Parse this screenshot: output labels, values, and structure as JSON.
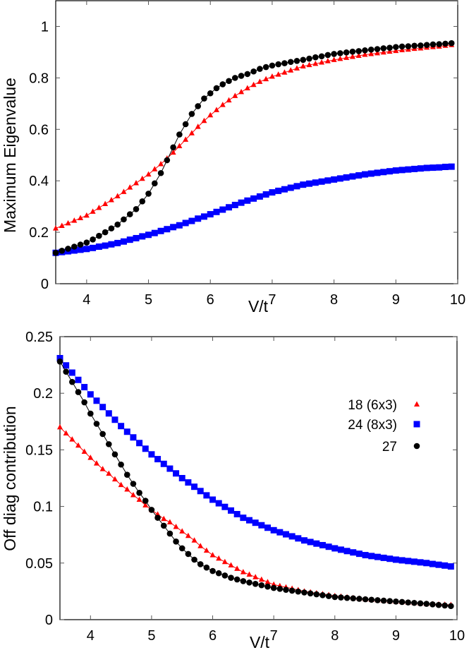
{
  "chart_data": [
    {
      "type": "line",
      "xlabel": "V/t",
      "ylabel": "Maximum Eigenvalue",
      "xlim": [
        3.5,
        10
      ],
      "ylim": [
        0,
        1.1
      ],
      "xticks": [
        "4",
        "5",
        "6",
        "7",
        "8",
        "9",
        "10"
      ],
      "yticks": [
        "0",
        "0.2",
        "0.4",
        "0.6",
        "0.8",
        "1"
      ],
      "grid": false,
      "legend": "none",
      "x": [
        3.5,
        3.6,
        3.7,
        3.8,
        3.9,
        4.0,
        4.1,
        4.2,
        4.3,
        4.4,
        4.5,
        4.6,
        4.7,
        4.8,
        4.9,
        5.0,
        5.1,
        5.2,
        5.3,
        5.4,
        5.5,
        5.6,
        5.7,
        5.8,
        5.9,
        6.0,
        6.1,
        6.2,
        6.3,
        6.4,
        6.5,
        6.6,
        6.7,
        6.8,
        6.9,
        7.0,
        7.1,
        7.2,
        7.3,
        7.4,
        7.5,
        7.6,
        7.7,
        7.8,
        7.9,
        8.0,
        8.1,
        8.2,
        8.3,
        8.4,
        8.5,
        8.6,
        8.7,
        8.8,
        8.9,
        9.0,
        9.1,
        9.2,
        9.3,
        9.4,
        9.5,
        9.6,
        9.7,
        9.8,
        9.9
      ],
      "series": [
        {
          "marker": "triangle",
          "color": "#ff0000",
          "values": [
            0.215,
            0.225,
            0.235,
            0.245,
            0.255,
            0.265,
            0.28,
            0.295,
            0.31,
            0.325,
            0.34,
            0.357,
            0.374,
            0.391,
            0.408,
            0.425,
            0.445,
            0.465,
            0.487,
            0.51,
            0.535,
            0.56,
            0.585,
            0.61,
            0.633,
            0.655,
            0.675,
            0.695,
            0.713,
            0.73,
            0.745,
            0.76,
            0.773,
            0.785,
            0.795,
            0.805,
            0.813,
            0.821,
            0.829,
            0.837,
            0.845,
            0.85,
            0.855,
            0.86,
            0.865,
            0.87,
            0.874,
            0.878,
            0.882,
            0.886,
            0.89,
            0.893,
            0.896,
            0.899,
            0.902,
            0.905,
            0.908,
            0.91,
            0.913,
            0.915,
            0.918,
            0.92,
            0.922,
            0.925,
            0.928
          ]
        },
        {
          "marker": "square",
          "color": "#0000ff",
          "values": [
            0.12,
            0.123,
            0.126,
            0.129,
            0.132,
            0.135,
            0.139,
            0.144,
            0.148,
            0.153,
            0.158,
            0.164,
            0.171,
            0.177,
            0.184,
            0.19,
            0.197,
            0.205,
            0.212,
            0.22,
            0.227,
            0.236,
            0.244,
            0.253,
            0.261,
            0.27,
            0.279,
            0.288,
            0.297,
            0.306,
            0.315,
            0.323,
            0.331,
            0.339,
            0.347,
            0.355,
            0.361,
            0.367,
            0.373,
            0.379,
            0.385,
            0.389,
            0.393,
            0.397,
            0.401,
            0.405,
            0.409,
            0.413,
            0.417,
            0.421,
            0.425,
            0.428,
            0.431,
            0.434,
            0.437,
            0.44,
            0.442,
            0.444,
            0.446,
            0.448,
            0.45,
            0.451,
            0.452,
            0.454,
            0.455
          ]
        },
        {
          "marker": "circle",
          "color": "#000000",
          "values": [
            0.12,
            0.128,
            0.136,
            0.144,
            0.152,
            0.16,
            0.172,
            0.186,
            0.2,
            0.215,
            0.23,
            0.25,
            0.27,
            0.29,
            0.32,
            0.35,
            0.39,
            0.43,
            0.48,
            0.53,
            0.58,
            0.62,
            0.66,
            0.69,
            0.72,
            0.74,
            0.76,
            0.775,
            0.788,
            0.8,
            0.808,
            0.815,
            0.825,
            0.835,
            0.842,
            0.848,
            0.853,
            0.857,
            0.862,
            0.866,
            0.87,
            0.875,
            0.88,
            0.884,
            0.889,
            0.893,
            0.896,
            0.899,
            0.902,
            0.904,
            0.907,
            0.91,
            0.912,
            0.915,
            0.917,
            0.92,
            0.922,
            0.923,
            0.925,
            0.926,
            0.928,
            0.93,
            0.931,
            0.933,
            0.935
          ]
        }
      ]
    },
    {
      "type": "line",
      "xlabel": "V/t",
      "ylabel": "Off diag contribution",
      "xlim": [
        3.5,
        10
      ],
      "ylim": [
        0,
        0.25
      ],
      "xticks": [
        "4",
        "5",
        "6",
        "7",
        "8",
        "9",
        "10"
      ],
      "yticks": [
        "0",
        "0.05",
        "0.1",
        "0.15",
        "0.2",
        "0.25"
      ],
      "grid": false,
      "legend": "top-right",
      "x": [
        3.5,
        3.6,
        3.7,
        3.8,
        3.9,
        4.0,
        4.1,
        4.2,
        4.3,
        4.4,
        4.5,
        4.6,
        4.7,
        4.8,
        4.9,
        5.0,
        5.1,
        5.2,
        5.3,
        5.4,
        5.5,
        5.6,
        5.7,
        5.8,
        5.9,
        6.0,
        6.1,
        6.2,
        6.3,
        6.4,
        6.5,
        6.6,
        6.7,
        6.8,
        6.9,
        7.0,
        7.1,
        7.2,
        7.3,
        7.4,
        7.5,
        7.6,
        7.7,
        7.8,
        7.9,
        8.0,
        8.1,
        8.2,
        8.3,
        8.4,
        8.5,
        8.6,
        8.7,
        8.8,
        8.9,
        9.0,
        9.1,
        9.2,
        9.3,
        9.4,
        9.5,
        9.6,
        9.7,
        9.8,
        9.9
      ],
      "series": [
        {
          "name": "18 (6x3)",
          "marker": "triangle",
          "color": "#ff0000",
          "values": [
            0.17,
            0.1646,
            0.1592,
            0.1538,
            0.1484,
            0.143,
            0.138,
            0.133,
            0.129,
            0.124,
            0.119,
            0.115,
            0.11,
            0.106,
            0.101,
            0.097,
            0.093,
            0.089,
            0.086,
            0.082,
            0.078,
            0.074,
            0.07,
            0.065,
            0.061,
            0.057,
            0.054,
            0.051,
            0.048,
            0.045,
            0.042,
            0.0398,
            0.0376,
            0.0354,
            0.0332,
            0.031,
            0.0298,
            0.0286,
            0.0274,
            0.0262,
            0.025,
            0.0242,
            0.0234,
            0.0226,
            0.0218,
            0.021,
            0.0204,
            0.0198,
            0.0192,
            0.0186,
            0.018,
            0.0176,
            0.0172,
            0.0168,
            0.0164,
            0.016,
            0.0156,
            0.0152,
            0.0148,
            0.0144,
            0.014,
            0.0138,
            0.0135,
            0.0133,
            0.013
          ]
        },
        {
          "name": "24 (8x3)",
          "marker": "square",
          "color": "#0000ff",
          "values": [
            0.231,
            0.2246,
            0.2182,
            0.2118,
            0.2054,
            0.199,
            0.1934,
            0.1878,
            0.1822,
            0.1766,
            0.171,
            0.166,
            0.161,
            0.156,
            0.151,
            0.146,
            0.1418,
            0.1376,
            0.1334,
            0.1292,
            0.125,
            0.1212,
            0.1174,
            0.1136,
            0.1098,
            0.106,
            0.1028,
            0.0996,
            0.0964,
            0.0932,
            0.09,
            0.0878,
            0.0856,
            0.0834,
            0.0812,
            0.079,
            0.0772,
            0.0754,
            0.0736,
            0.0718,
            0.07,
            0.0686,
            0.0672,
            0.0658,
            0.0644,
            0.063,
            0.0618,
            0.0606,
            0.0594,
            0.0582,
            0.057,
            0.0562,
            0.0554,
            0.0546,
            0.0538,
            0.053,
            0.0524,
            0.0518,
            0.0512,
            0.0506,
            0.05,
            0.0492,
            0.0485,
            0.0478,
            0.047
          ]
        },
        {
          "name": "27",
          "marker": "circle",
          "color": "#000000",
          "values": [
            0.228,
            0.219,
            0.21,
            0.201,
            0.192,
            0.182,
            0.173,
            0.164,
            0.155,
            0.146,
            0.137,
            0.128,
            0.12,
            0.112,
            0.105,
            0.097,
            0.09,
            0.083,
            0.076,
            0.069,
            0.063,
            0.058,
            0.053,
            0.049,
            0.046,
            0.043,
            0.041,
            0.039,
            0.037,
            0.0355,
            0.034,
            0.0328,
            0.0316,
            0.0304,
            0.0292,
            0.028,
            0.0272,
            0.0264,
            0.0256,
            0.0248,
            0.024,
            0.0232,
            0.0224,
            0.0216,
            0.0208,
            0.02,
            0.0196,
            0.0192,
            0.0188,
            0.0184,
            0.018,
            0.0176,
            0.0172,
            0.0168,
            0.0164,
            0.016,
            0.0156,
            0.0152,
            0.0148,
            0.0144,
            0.014,
            0.0135,
            0.013,
            0.0125,
            0.012
          ]
        }
      ]
    }
  ]
}
